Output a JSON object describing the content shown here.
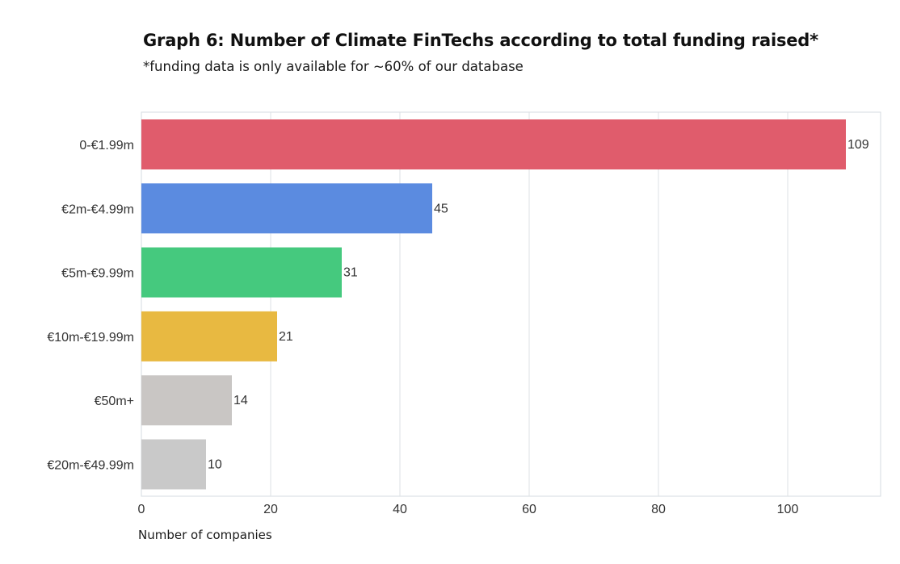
{
  "title": "Graph 6: Number of Climate FinTechs according to total funding raised*",
  "subtitle": "*funding data is only available for ~60% of our database",
  "chart_data": {
    "type": "bar",
    "orientation": "horizontal",
    "categories": [
      "0-€1.99m",
      "€2m-€4.99m",
      "€5m-€9.99m",
      "€10m-€19.99m",
      "€50m+",
      "€20m-€49.99m"
    ],
    "values": [
      109,
      45,
      31,
      21,
      14,
      10
    ],
    "colors": [
      "#e05c6c",
      "#5b8be0",
      "#45c97e",
      "#e8b941",
      "#c9c6c4",
      "#c9c9c9"
    ],
    "xlabel": "Number of companies",
    "ylabel": "",
    "xlim": [
      0,
      115
    ],
    "xticks": [
      0,
      20,
      40,
      60,
      80,
      100
    ],
    "grid": true
  }
}
